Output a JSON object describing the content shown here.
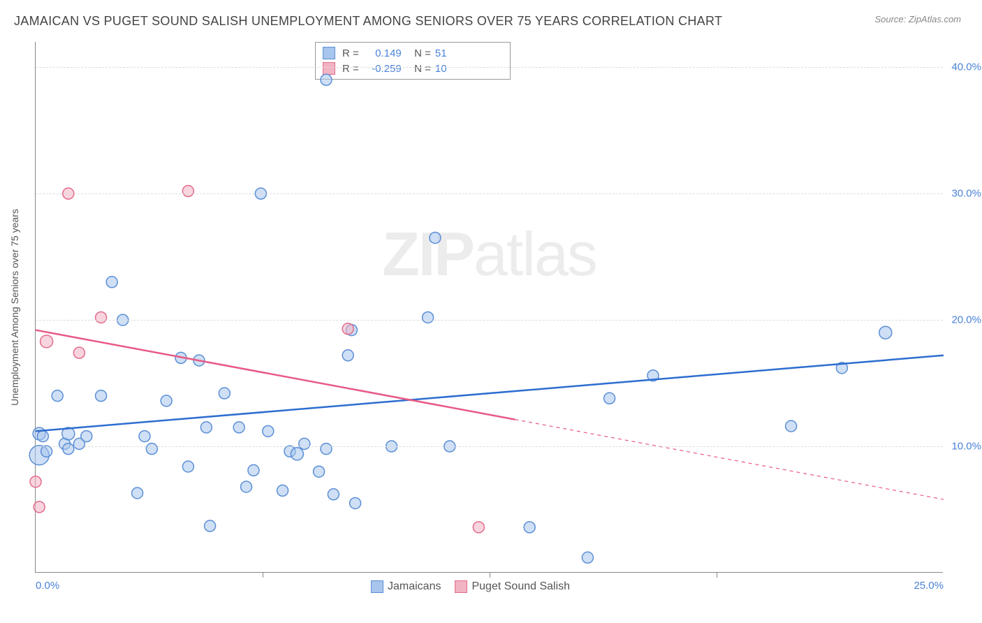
{
  "header": {
    "title": "JAMAICAN VS PUGET SOUND SALISH UNEMPLOYMENT AMONG SENIORS OVER 75 YEARS CORRELATION CHART",
    "source": "Source: ZipAtlas.com"
  },
  "chart": {
    "type": "scatter",
    "yaxis_title": "Unemployment Among Seniors over 75 years",
    "watermark_bold": "ZIP",
    "watermark_rest": "atlas",
    "xlim": [
      0,
      25
    ],
    "ylim": [
      0,
      42
    ],
    "xticks": [
      0.0,
      25.0
    ],
    "xtick_labels": [
      "0.0%",
      "25.0%"
    ],
    "xtick_minor": [
      6.25,
      12.5,
      18.75
    ],
    "yticks": [
      10.0,
      20.0,
      30.0,
      40.0
    ],
    "ytick_labels": [
      "10.0%",
      "20.0%",
      "30.0%",
      "40.0%"
    ],
    "background_color": "#ffffff",
    "grid_color": "#dddddd",
    "axis_color": "#888888",
    "series": [
      {
        "name": "Jamaicans",
        "color_fill": "#a8c5ed",
        "color_stroke": "#5b8fd6",
        "fill_opacity": 0.55,
        "marker_r": 8,
        "R": "0.149",
        "N": "51",
        "trend": {
          "x1": 0,
          "y1": 11.2,
          "x2": 25,
          "y2": 17.2,
          "solid_until_x": 25,
          "color": "#2d6dd0",
          "width": 2.5
        },
        "points": [
          [
            0.1,
            9.3,
            14
          ],
          [
            0.1,
            11.0,
            9
          ],
          [
            0.2,
            10.8,
            8
          ],
          [
            0.3,
            9.6,
            8
          ],
          [
            0.6,
            14.0,
            8
          ],
          [
            0.8,
            10.2,
            8
          ],
          [
            0.9,
            11.0,
            9
          ],
          [
            0.9,
            9.8,
            8
          ],
          [
            1.2,
            10.2,
            8
          ],
          [
            1.4,
            10.8,
            8
          ],
          [
            1.8,
            14.0,
            8
          ],
          [
            2.1,
            23.0,
            8
          ],
          [
            2.4,
            20.0,
            8
          ],
          [
            2.8,
            6.3,
            8
          ],
          [
            3.0,
            10.8,
            8
          ],
          [
            3.2,
            9.8,
            8
          ],
          [
            3.6,
            13.6,
            8
          ],
          [
            4.0,
            17.0,
            8
          ],
          [
            4.2,
            8.4,
            8
          ],
          [
            4.5,
            16.8,
            8
          ],
          [
            4.7,
            11.5,
            8
          ],
          [
            4.8,
            3.7,
            8
          ],
          [
            5.2,
            14.2,
            8
          ],
          [
            5.6,
            11.5,
            8
          ],
          [
            5.8,
            6.8,
            8
          ],
          [
            6.0,
            8.1,
            8
          ],
          [
            6.2,
            30.0,
            8
          ],
          [
            6.4,
            11.2,
            8
          ],
          [
            6.8,
            6.5,
            8
          ],
          [
            7.0,
            9.6,
            8
          ],
          [
            7.2,
            9.4,
            9
          ],
          [
            7.4,
            10.2,
            8
          ],
          [
            7.8,
            8.0,
            8
          ],
          [
            8.0,
            39.0,
            8
          ],
          [
            8.0,
            9.8,
            8
          ],
          [
            8.2,
            6.2,
            8
          ],
          [
            8.6,
            17.2,
            8
          ],
          [
            8.7,
            19.2,
            8
          ],
          [
            8.8,
            5.5,
            8
          ],
          [
            9.8,
            10.0,
            8
          ],
          [
            10.8,
            20.2,
            8
          ],
          [
            11.0,
            26.5,
            8
          ],
          [
            11.4,
            10.0,
            8
          ],
          [
            13.6,
            3.6,
            8
          ],
          [
            15.2,
            1.2,
            8
          ],
          [
            15.8,
            13.8,
            8
          ],
          [
            17.0,
            15.6,
            8
          ],
          [
            20.8,
            11.6,
            8
          ],
          [
            22.2,
            16.2,
            8
          ],
          [
            23.4,
            19.0,
            9
          ]
        ]
      },
      {
        "name": "Puget Sound Salish",
        "color_fill": "#f2b3c2",
        "color_stroke": "#e26b8a",
        "fill_opacity": 0.55,
        "marker_r": 8,
        "R": "-0.259",
        "N": "10",
        "trend": {
          "x1": 0,
          "y1": 19.2,
          "x2": 25,
          "y2": 5.8,
          "solid_until_x": 13.2,
          "color": "#e85a86",
          "width": 2.5
        },
        "points": [
          [
            0.0,
            7.2,
            8
          ],
          [
            0.1,
            5.2,
            8
          ],
          [
            0.3,
            18.3,
            9
          ],
          [
            0.9,
            30.0,
            8
          ],
          [
            1.2,
            17.4,
            8
          ],
          [
            1.8,
            20.2,
            8
          ],
          [
            4.2,
            30.2,
            8
          ],
          [
            8.6,
            19.3,
            8
          ],
          [
            12.2,
            3.6,
            8
          ]
        ]
      }
    ],
    "legend": {
      "bottom_items": [
        "Jamaicans",
        "Puget Sound Salish"
      ]
    }
  }
}
